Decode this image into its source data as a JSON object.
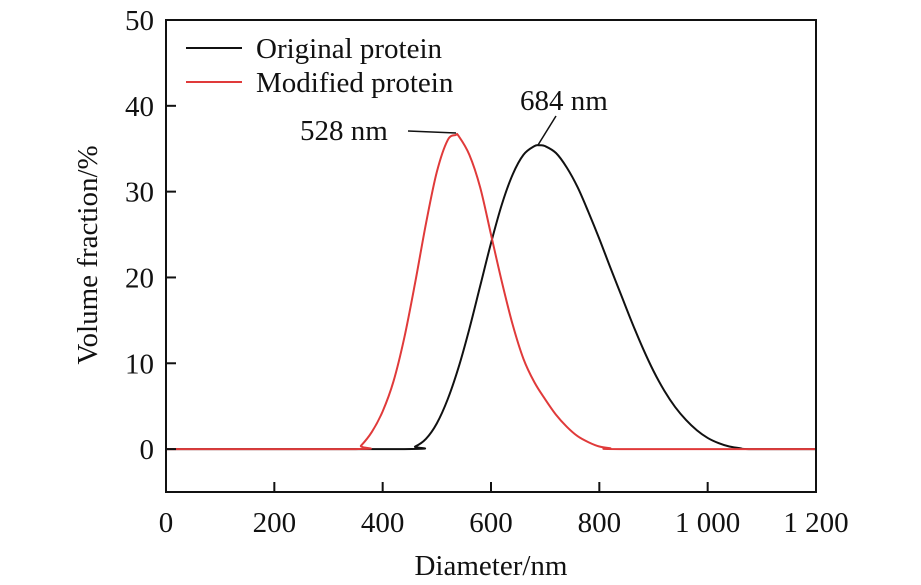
{
  "chart_data": {
    "type": "line",
    "title": "",
    "xlabel": "Diameter/nm",
    "ylabel": "Volume fraction/%",
    "xlim": [
      0,
      1200
    ],
    "ylim": [
      -5,
      50
    ],
    "xticks": [
      0,
      200,
      400,
      600,
      800,
      1000,
      1200
    ],
    "xtick_labels": [
      "0",
      "200",
      "400",
      "600",
      "800",
      "1 000",
      "1 200"
    ],
    "yticks": [
      0,
      10,
      20,
      30,
      40,
      50
    ],
    "ytick_labels": [
      "0",
      "10",
      "20",
      "30",
      "40",
      "50"
    ],
    "grid": false,
    "legend_position": "top-left",
    "series": [
      {
        "name": "Original protein",
        "color": "#111111",
        "x": [
          0,
          440,
          460,
          480,
          500,
          520,
          540,
          560,
          580,
          600,
          620,
          640,
          660,
          680,
          690,
          700,
          720,
          740,
          760,
          780,
          800,
          820,
          840,
          860,
          880,
          900,
          920,
          940,
          960,
          980,
          1000,
          1020,
          1040,
          1060,
          1080,
          1200
        ],
        "y": [
          0,
          0,
          0.3,
          1.2,
          3.0,
          5.8,
          9.5,
          14,
          19,
          24,
          28.5,
          32,
          34.3,
          35.3,
          35.4,
          35.3,
          34.5,
          32.8,
          30.5,
          27.6,
          24.5,
          21.2,
          18,
          14.8,
          11.8,
          9.1,
          6.8,
          4.9,
          3.4,
          2.2,
          1.3,
          0.7,
          0.3,
          0.1,
          0,
          0
        ]
      },
      {
        "name": "Modified protein",
        "color": "#e03a3a",
        "x": [
          0,
          350,
          360,
          380,
          400,
          420,
          440,
          460,
          480,
          500,
          520,
          535,
          540,
          560,
          580,
          600,
          620,
          640,
          660,
          680,
          700,
          720,
          740,
          760,
          780,
          800,
          820,
          840,
          1200
        ],
        "y": [
          0,
          0,
          0.4,
          2.0,
          4.4,
          7.9,
          13,
          19.4,
          26.3,
          32.3,
          36,
          36.6,
          36.5,
          34.3,
          30.5,
          25,
          19.5,
          14.5,
          10.5,
          7.8,
          5.8,
          4.0,
          2.6,
          1.5,
          0.8,
          0.3,
          0.1,
          0,
          0
        ]
      }
    ],
    "annotations": [
      {
        "text": "528 nm",
        "series": "Modified protein",
        "x": 535,
        "y": 36.6
      },
      {
        "text": "684 nm",
        "series": "Original protein",
        "x": 690,
        "y": 35.4
      }
    ]
  }
}
